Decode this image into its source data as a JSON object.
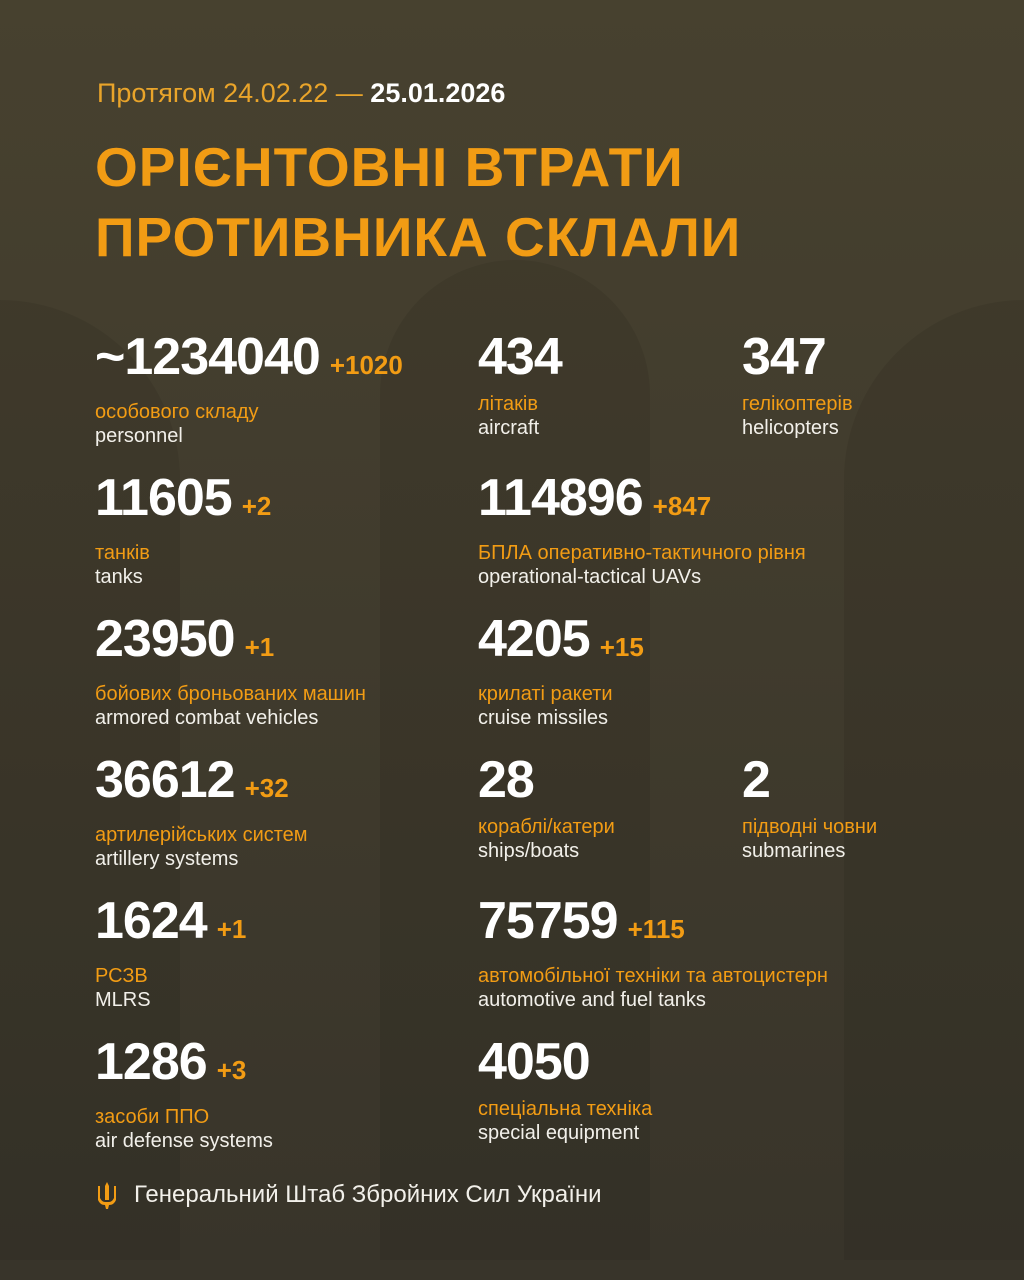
{
  "header": {
    "period_prefix": "Протягом 24.02.22 —",
    "period_end": "25.01.2026",
    "title_line1": "ОРІЄНТОВНІ ВТРАТИ",
    "title_line2": "ПРОТИВНИКА СКЛАЛИ"
  },
  "colors": {
    "accent": "#f29c14",
    "background": "#423d2e",
    "text": "#ffffff"
  },
  "items": [
    {
      "value": "~1234040",
      "delta": "+1020",
      "ua": "особового складу",
      "en": "personnel"
    },
    {
      "value": "434",
      "delta": "",
      "ua": "літаків",
      "en": "aircraft"
    },
    {
      "value": "347",
      "delta": "",
      "ua": "гелікоптерів",
      "en": "helicopters"
    },
    {
      "value": "11605",
      "delta": "+2",
      "ua": "танків",
      "en": "tanks"
    },
    {
      "value": "114896",
      "delta": "+847",
      "ua": "БПЛА оперативно-тактичного рівня",
      "en": "operational-tactical UAVs"
    },
    {
      "value": "23950",
      "delta": "+1",
      "ua": "бойових броньованих машин",
      "en": "armored combat vehicles"
    },
    {
      "value": "4205",
      "delta": "+15",
      "ua": "крилаті ракети",
      "en": "cruise missiles"
    },
    {
      "value": "36612",
      "delta": "+32",
      "ua": "артилерійських систем",
      "en": "artillery systems"
    },
    {
      "value": "28",
      "delta": "",
      "ua": "кораблі/катери",
      "en": "ships/boats"
    },
    {
      "value": "2",
      "delta": "",
      "ua": "підводні човни",
      "en": "submarines"
    },
    {
      "value": "1624",
      "delta": "+1",
      "ua": "РСЗВ",
      "en": "MLRS"
    },
    {
      "value": "75759",
      "delta": "+115",
      "ua": "автомобільної техніки та автоцистерн",
      "en": "automotive and fuel tanks"
    },
    {
      "value": "1286",
      "delta": "+3",
      "ua": "засоби ППО",
      "en": "air defense systems"
    },
    {
      "value": "4050",
      "delta": "",
      "ua": "спеціальна техніка",
      "en": "special equipment"
    }
  ],
  "footer": {
    "icon": "trident-icon",
    "text": "Генеральний Штаб Збройних Сил України"
  }
}
